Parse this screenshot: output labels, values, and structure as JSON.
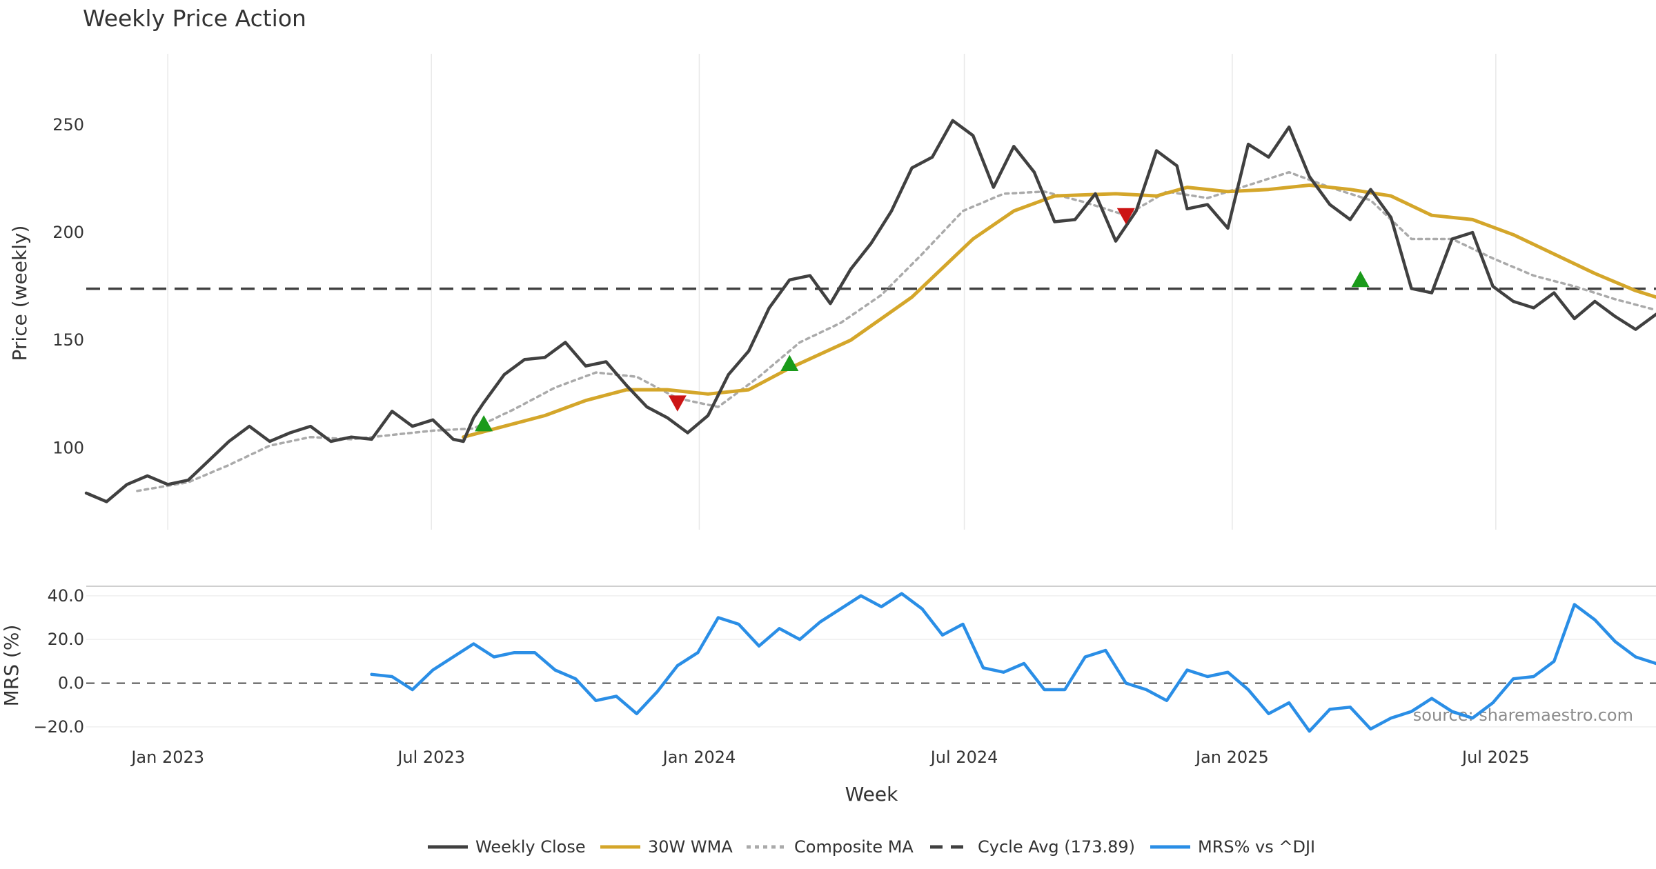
{
  "chart_data": [
    {
      "type": "line",
      "panel": "price",
      "title": "Weekly Price Action",
      "ylabel": "Price (weekly)",
      "ylim": [
        62,
        283
      ],
      "yticks": [
        100,
        150,
        200,
        250
      ],
      "xlabels": [
        "Jan 2023",
        "Jul 2023",
        "Jan 2024",
        "Jul 2024",
        "Jan 2025",
        "Jul 2025"
      ],
      "xlabel_dates": [
        "2023-01-01",
        "2023-07-01",
        "2024-01-01",
        "2024-07-01",
        "2025-01-01",
        "2025-07-01"
      ],
      "x_range": [
        "2022-11-06",
        "2025-10-19"
      ],
      "series": [
        {
          "name": "Weekly Close",
          "color": "#404040",
          "points": [
            [
              "2022-11-06",
              79
            ],
            [
              "2022-11-20",
              75
            ],
            [
              "2022-12-04",
              83
            ],
            [
              "2022-12-18",
              87
            ],
            [
              "2023-01-01",
              83
            ],
            [
              "2023-01-15",
              85
            ],
            [
              "2023-01-29",
              94
            ],
            [
              "2023-02-12",
              103
            ],
            [
              "2023-02-26",
              110
            ],
            [
              "2023-03-12",
              103
            ],
            [
              "2023-03-26",
              107
            ],
            [
              "2023-04-09",
              110
            ],
            [
              "2023-04-23",
              103
            ],
            [
              "2023-05-07",
              105
            ],
            [
              "2023-05-21",
              104
            ],
            [
              "2023-06-04",
              117
            ],
            [
              "2023-06-18",
              110
            ],
            [
              "2023-07-02",
              113
            ],
            [
              "2023-07-16",
              104
            ],
            [
              "2023-07-23",
              103
            ],
            [
              "2023-07-30",
              114
            ],
            [
              "2023-08-06",
              121
            ],
            [
              "2023-08-20",
              134
            ],
            [
              "2023-09-03",
              141
            ],
            [
              "2023-09-17",
              142
            ],
            [
              "2023-10-01",
              149
            ],
            [
              "2023-10-15",
              138
            ],
            [
              "2023-10-29",
              140
            ],
            [
              "2023-11-12",
              129
            ],
            [
              "2023-11-26",
              119
            ],
            [
              "2023-12-10",
              114
            ],
            [
              "2023-12-24",
              107
            ],
            [
              "2024-01-07",
              115
            ],
            [
              "2024-01-21",
              134
            ],
            [
              "2024-02-04",
              145
            ],
            [
              "2024-02-18",
              165
            ],
            [
              "2024-03-03",
              178
            ],
            [
              "2024-03-17",
              180
            ],
            [
              "2024-03-31",
              167
            ],
            [
              "2024-04-14",
              183
            ],
            [
              "2024-04-28",
              195
            ],
            [
              "2024-05-12",
              210
            ],
            [
              "2024-05-26",
              230
            ],
            [
              "2024-06-09",
              235
            ],
            [
              "2024-06-23",
              252
            ],
            [
              "2024-07-07",
              245
            ],
            [
              "2024-07-21",
              221
            ],
            [
              "2024-08-04",
              240
            ],
            [
              "2024-08-18",
              228
            ],
            [
              "2024-09-01",
              205
            ],
            [
              "2024-09-15",
              206
            ],
            [
              "2024-09-29",
              218
            ],
            [
              "2024-10-13",
              196
            ],
            [
              "2024-10-27",
              210
            ],
            [
              "2024-11-10",
              238
            ],
            [
              "2024-11-24",
              231
            ],
            [
              "2024-12-01",
              211
            ],
            [
              "2024-12-15",
              213
            ],
            [
              "2024-12-29",
              202
            ],
            [
              "2025-01-12",
              241
            ],
            [
              "2025-01-26",
              235
            ],
            [
              "2025-02-09",
              249
            ],
            [
              "2025-02-23",
              226
            ],
            [
              "2025-03-09",
              213
            ],
            [
              "2025-03-23",
              206
            ],
            [
              "2025-04-06",
              220
            ],
            [
              "2025-04-20",
              207
            ],
            [
              "2025-05-04",
              174
            ],
            [
              "2025-05-18",
              172
            ],
            [
              "2025-06-01",
              197
            ],
            [
              "2025-06-15",
              200
            ],
            [
              "2025-06-29",
              175
            ],
            [
              "2025-07-13",
              168
            ],
            [
              "2025-07-27",
              165
            ],
            [
              "2025-08-10",
              172
            ],
            [
              "2025-08-24",
              160
            ],
            [
              "2025-09-07",
              168
            ],
            [
              "2025-09-21",
              161
            ],
            [
              "2025-10-05",
              155
            ],
            [
              "2025-10-19",
              162
            ]
          ]
        },
        {
          "name": "30W WMA",
          "color": "#d4a62a",
          "points": [
            [
              "2023-07-23",
              105
            ],
            [
              "2023-08-20",
              110
            ],
            [
              "2023-09-17",
              115
            ],
            [
              "2023-10-15",
              122
            ],
            [
              "2023-11-12",
              127
            ],
            [
              "2023-12-10",
              127
            ],
            [
              "2024-01-07",
              125
            ],
            [
              "2024-02-04",
              127
            ],
            [
              "2024-03-03",
              137
            ],
            [
              "2024-04-14",
              150
            ],
            [
              "2024-05-26",
              170
            ],
            [
              "2024-07-07",
              197
            ],
            [
              "2024-08-04",
              210
            ],
            [
              "2024-09-01",
              217
            ],
            [
              "2024-10-13",
              218
            ],
            [
              "2024-11-10",
              217
            ],
            [
              "2024-12-01",
              221
            ],
            [
              "2024-12-29",
              219
            ],
            [
              "2025-01-26",
              220
            ],
            [
              "2025-02-23",
              222
            ],
            [
              "2025-03-23",
              220
            ],
            [
              "2025-04-20",
              217
            ],
            [
              "2025-05-18",
              208
            ],
            [
              "2025-06-15",
              206
            ],
            [
              "2025-07-13",
              199
            ],
            [
              "2025-08-10",
              190
            ],
            [
              "2025-09-07",
              181
            ],
            [
              "2025-10-05",
              173
            ],
            [
              "2025-10-19",
              170
            ]
          ]
        },
        {
          "name": "Composite MA",
          "color": "#aaaaaa",
          "points": [
            [
              "2022-12-11",
              80
            ],
            [
              "2023-01-15",
              84
            ],
            [
              "2023-02-12",
              92
            ],
            [
              "2023-03-12",
              101
            ],
            [
              "2023-04-09",
              105
            ],
            [
              "2023-05-07",
              104
            ],
            [
              "2023-06-04",
              106
            ],
            [
              "2023-07-02",
              108
            ],
            [
              "2023-07-30",
              109
            ],
            [
              "2023-08-27",
              118
            ],
            [
              "2023-09-24",
              128
            ],
            [
              "2023-10-22",
              135
            ],
            [
              "2023-11-19",
              133
            ],
            [
              "2023-12-17",
              123
            ],
            [
              "2024-01-14",
              119
            ],
            [
              "2024-02-11",
              133
            ],
            [
              "2024-03-10",
              149
            ],
            [
              "2024-04-07",
              158
            ],
            [
              "2024-05-05",
              171
            ],
            [
              "2024-06-02",
              190
            ],
            [
              "2024-06-30",
              210
            ],
            [
              "2024-07-28",
              218
            ],
            [
              "2024-08-25",
              219
            ],
            [
              "2024-09-22",
              214
            ],
            [
              "2024-10-20",
              208
            ],
            [
              "2024-11-17",
              219
            ],
            [
              "2024-12-15",
              216
            ],
            [
              "2025-01-12",
              222
            ],
            [
              "2025-02-09",
              228
            ],
            [
              "2025-03-09",
              221
            ],
            [
              "2025-04-06",
              215
            ],
            [
              "2025-05-04",
              197
            ],
            [
              "2025-06-01",
              197
            ],
            [
              "2025-06-29",
              188
            ],
            [
              "2025-07-27",
              180
            ],
            [
              "2025-08-24",
              175
            ],
            [
              "2025-09-21",
              169
            ],
            [
              "2025-10-19",
              164
            ]
          ]
        },
        {
          "name": "Cycle Avg (173.89)",
          "color": "#404040",
          "constant": 173.89
        }
      ],
      "markers": [
        {
          "type": "buy",
          "date": "2023-08-06",
          "value": 111,
          "color": "#1a9a1a"
        },
        {
          "type": "sell",
          "date": "2023-12-17",
          "value": 121,
          "color": "#cc1414"
        },
        {
          "type": "buy",
          "date": "2024-03-03",
          "value": 139,
          "color": "#1a9a1a"
        },
        {
          "type": "sell",
          "date": "2024-10-20",
          "value": 208,
          "color": "#cc1414"
        },
        {
          "type": "buy",
          "date": "2025-03-30",
          "value": 178,
          "color": "#1a9a1a"
        }
      ]
    },
    {
      "type": "line",
      "panel": "mrs",
      "ylabel": "MRS (%)",
      "ylim": [
        -27,
        45
      ],
      "yticks": [
        40,
        20,
        0,
        -20
      ],
      "ytick_labels": [
        "40.0",
        "20.0",
        "0.0",
        "−20.0"
      ],
      "xlabel": "Week",
      "series": [
        {
          "name": "MRS% vs ^DJI",
          "color": "#2a8ee6",
          "points": [
            [
              "2023-05-21",
              4
            ],
            [
              "2023-06-04",
              3
            ],
            [
              "2023-06-18",
              -3
            ],
            [
              "2023-07-02",
              6
            ],
            [
              "2023-07-16",
              12
            ],
            [
              "2023-07-30",
              18
            ],
            [
              "2023-08-13",
              12
            ],
            [
              "2023-08-27",
              14
            ],
            [
              "2023-09-10",
              14
            ],
            [
              "2023-09-24",
              6
            ],
            [
              "2023-10-08",
              2
            ],
            [
              "2023-10-22",
              -8
            ],
            [
              "2023-11-05",
              -6
            ],
            [
              "2023-11-19",
              -14
            ],
            [
              "2023-12-03",
              -4
            ],
            [
              "2023-12-17",
              8
            ],
            [
              "2023-12-31",
              14
            ],
            [
              "2024-01-14",
              30
            ],
            [
              "2024-01-28",
              27
            ],
            [
              "2024-02-11",
              17
            ],
            [
              "2024-02-25",
              25
            ],
            [
              "2024-03-10",
              20
            ],
            [
              "2024-03-24",
              28
            ],
            [
              "2024-04-07",
              34
            ],
            [
              "2024-04-21",
              40
            ],
            [
              "2024-05-05",
              35
            ],
            [
              "2024-05-19",
              41
            ],
            [
              "2024-06-02",
              34
            ],
            [
              "2024-06-16",
              22
            ],
            [
              "2024-06-30",
              27
            ],
            [
              "2024-07-14",
              7
            ],
            [
              "2024-07-28",
              5
            ],
            [
              "2024-08-11",
              9
            ],
            [
              "2024-08-25",
              -3
            ],
            [
              "2024-09-08",
              -3
            ],
            [
              "2024-09-22",
              12
            ],
            [
              "2024-10-06",
              15
            ],
            [
              "2024-10-20",
              0
            ],
            [
              "2024-11-03",
              -3
            ],
            [
              "2024-11-17",
              -8
            ],
            [
              "2024-12-01",
              6
            ],
            [
              "2024-12-15",
              3
            ],
            [
              "2024-12-29",
              5
            ],
            [
              "2025-01-12",
              -3
            ],
            [
              "2025-01-26",
              -14
            ],
            [
              "2025-02-09",
              -9
            ],
            [
              "2025-02-23",
              -22
            ],
            [
              "2025-03-09",
              -12
            ],
            [
              "2025-03-23",
              -11
            ],
            [
              "2025-04-06",
              -21
            ],
            [
              "2025-04-20",
              -16
            ],
            [
              "2025-05-04",
              -13
            ],
            [
              "2025-05-18",
              -7
            ],
            [
              "2025-06-01",
              -13
            ],
            [
              "2025-06-15",
              -16
            ],
            [
              "2025-06-29",
              -9
            ],
            [
              "2025-07-13",
              2
            ],
            [
              "2025-07-27",
              3
            ],
            [
              "2025-08-10",
              10
            ],
            [
              "2025-08-24",
              36
            ],
            [
              "2025-09-07",
              29
            ],
            [
              "2025-09-21",
              19
            ],
            [
              "2025-10-05",
              12
            ],
            [
              "2025-10-19",
              9
            ]
          ]
        }
      ]
    }
  ],
  "legend": [
    {
      "label": "Weekly Close",
      "color": "#404040",
      "style": "solid"
    },
    {
      "label": "30W WMA",
      "color": "#d4a62a",
      "style": "solid"
    },
    {
      "label": "Composite MA",
      "color": "#aaaaaa",
      "style": "dotted"
    },
    {
      "label": "Cycle Avg (173.89)",
      "color": "#404040",
      "style": "dashed"
    },
    {
      "label": "MRS% vs ^DJI",
      "color": "#2a8ee6",
      "style": "solid"
    }
  ],
  "source": "source: sharemaestro.com"
}
